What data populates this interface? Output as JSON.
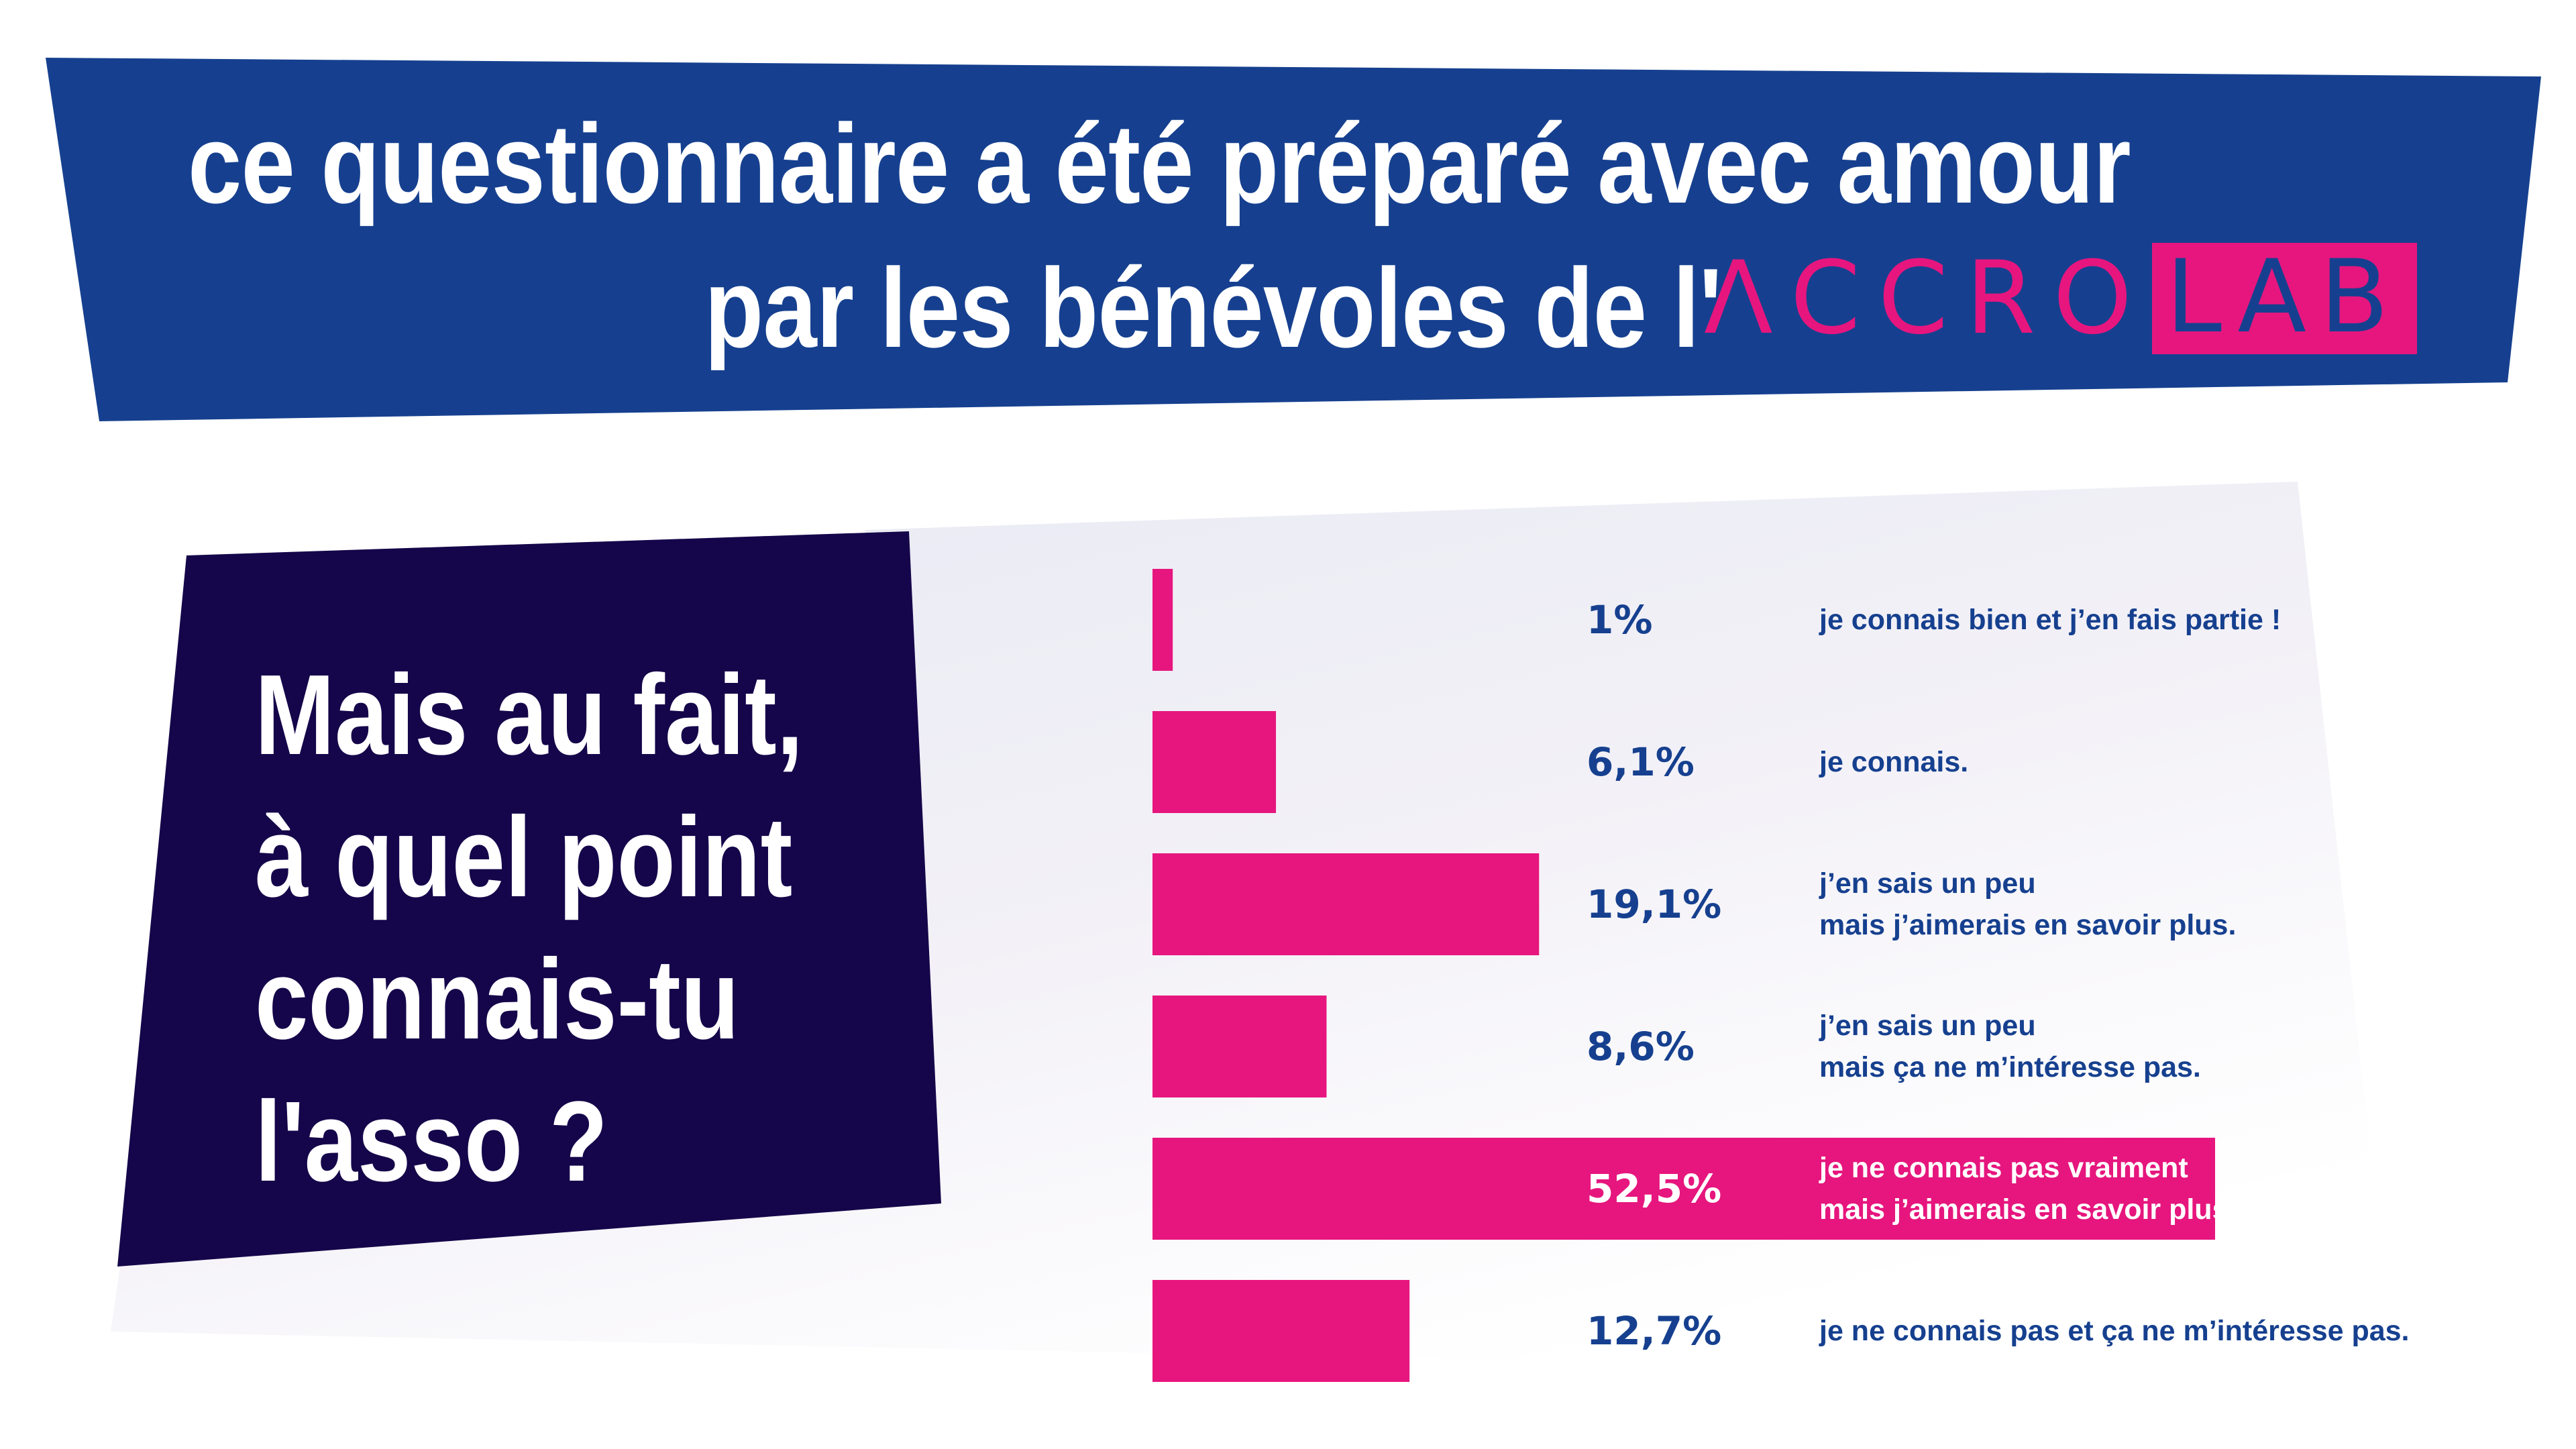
{
  "banner": {
    "line1": "ce questionnaire a été préparé avec amour",
    "line2": "par les bénévoles de l'"
  },
  "logo": {
    "part1": "ΛCCRO",
    "part2": "LAB"
  },
  "question": {
    "text": "Mais au fait,\nà quel point\nconnais-tu\nl'asso ?"
  },
  "colors": {
    "banner_blue": "#16408f",
    "panel_navy": "#15054a",
    "bar_pink": "#e6167e",
    "text_blue": "#16408f",
    "white": "#ffffff"
  },
  "chart_data": {
    "type": "bar",
    "orientation": "horizontal",
    "categories": [
      "je connais bien et j’en fais partie !",
      "je connais.",
      "j’en sais un peu\nmais j’aimerais en savoir plus.",
      "j’en sais un peu\nmais ça ne m’intéresse pas.",
      "je ne connais pas vraiment\nmais j’aimerais en savoir plus.",
      "je ne connais pas et ça ne m’intéresse pas."
    ],
    "values": [
      1,
      6.1,
      19.1,
      8.6,
      52.5,
      12.7
    ],
    "value_labels": [
      "1%",
      "6,1%",
      "19,1%",
      "8,6%",
      "52,5%",
      "12,7%"
    ],
    "xlim": [
      0,
      52.5
    ],
    "grid": false,
    "legend": "none"
  }
}
